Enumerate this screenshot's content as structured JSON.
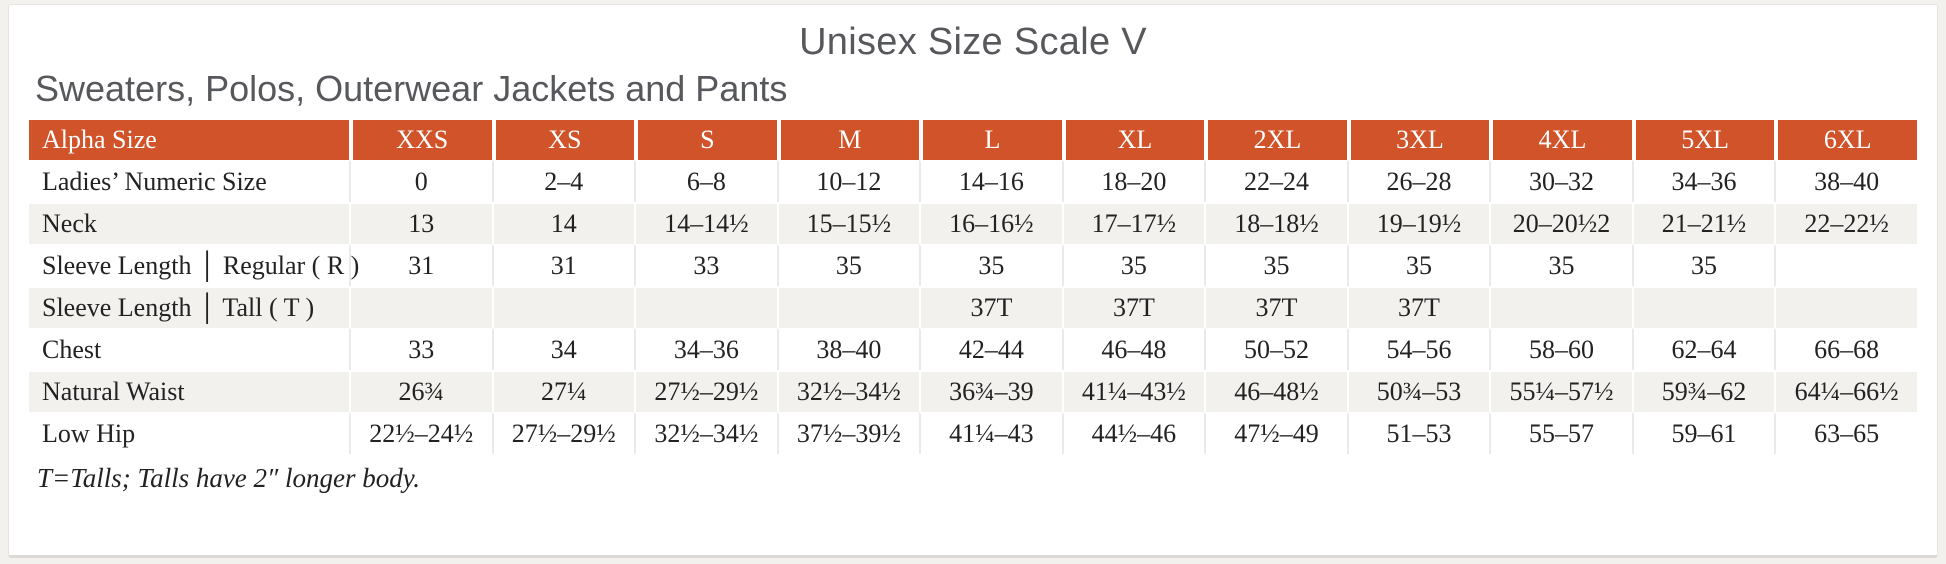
{
  "page": {
    "title": "Unisex Size Scale V",
    "subtitle": "Sweaters, Polos, Outerwear Jackets and Pants",
    "footnote": "T=Talls; Talls have 2″ longer body."
  },
  "colors": {
    "accent_orange": "#d05329",
    "stripe_gray": "#f2f1ee",
    "title_gray": "#56585c",
    "header_text": "#ffffff",
    "body_text": "#222222",
    "page_background": "#f3f1ee",
    "card_background": "#ffffff"
  },
  "table": {
    "header": [
      "Alpha Size",
      "XXS",
      "XS",
      "S",
      "M",
      "L",
      "XL",
      "2XL",
      "3XL",
      "4XL",
      "5XL",
      "6XL"
    ],
    "rows": [
      {
        "label": "Ladies’ Numeric Size",
        "values": [
          "0",
          "2–4",
          "6–8",
          "10–12",
          "14–16",
          "18–20",
          "22–24",
          "26–28",
          "30–32",
          "34–36",
          "38–40"
        ]
      },
      {
        "label": "Neck",
        "values": [
          "13",
          "14",
          "14–14½",
          "15–15½",
          "16–16½",
          "17–17½",
          "18–18½",
          "19–19½",
          "20–20½2",
          "21–21½",
          "22–22½"
        ]
      },
      {
        "label": "Sleeve Length │ Regular ( R )",
        "values": [
          "31",
          "31",
          "33",
          "35",
          "35",
          "35",
          "35",
          "35",
          "35",
          "35",
          ""
        ]
      },
      {
        "label": "Sleeve Length │ Tall ( T )",
        "values": [
          "",
          "",
          "",
          "",
          "37T",
          "37T",
          "37T",
          "37T",
          "",
          "",
          ""
        ]
      },
      {
        "label": "Chest",
        "values": [
          "33",
          "34",
          "34–36",
          "38–40",
          "42–44",
          "46–48",
          "50–52",
          "54–56",
          "58–60",
          "62–64",
          "66–68"
        ]
      },
      {
        "label": "Natural Waist",
        "values": [
          "26¾",
          "27¼",
          "27½–29½",
          "32½–34½",
          "36¾–39",
          "41¼–43½",
          "46–48½",
          "50¾–53",
          "55¼–57½",
          "59¾–62",
          "64¼–66½"
        ]
      },
      {
        "label": "Low Hip",
        "values": [
          "22½–24½",
          "27½–29½",
          "32½–34½",
          "37½–39½",
          "41¼–43",
          "44½–46",
          "47½–49",
          "51–53",
          "55–57",
          "59–61",
          "63–65"
        ]
      }
    ]
  }
}
